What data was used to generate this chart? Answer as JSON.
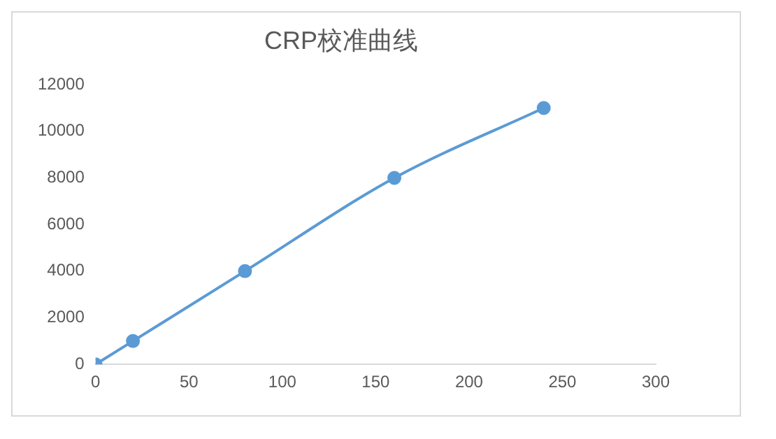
{
  "chart_data": {
    "type": "line",
    "title": "CRP校准曲线",
    "x": [
      0,
      20,
      80,
      160,
      240
    ],
    "series": [
      {
        "color": "#5b9bd5",
        "values": [
          0,
          1000,
          4000,
          8000,
          11000
        ]
      }
    ],
    "xlim": [
      0,
      300
    ],
    "xticks": [
      0,
      50,
      100,
      150,
      200,
      250,
      300
    ],
    "ylim": [
      0,
      12000
    ],
    "yticks": [
      0,
      2000,
      4000,
      6000,
      8000,
      10000,
      12000
    ],
    "marker": "circle",
    "line_style": "solid"
  }
}
